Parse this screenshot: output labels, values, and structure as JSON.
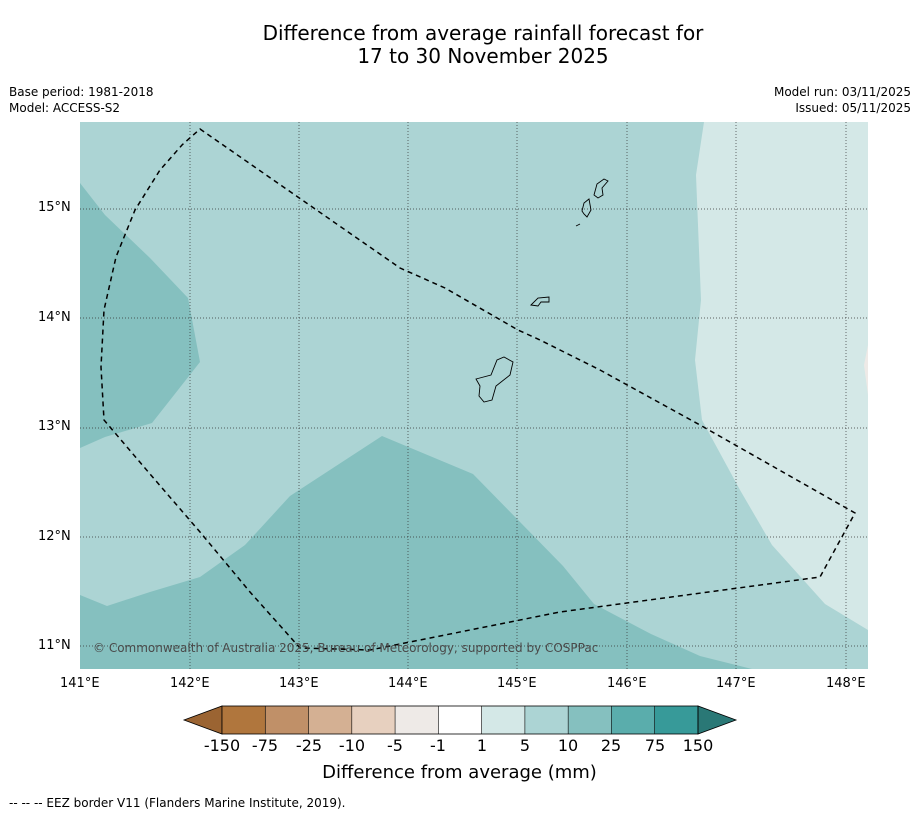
{
  "title": {
    "line1": "Difference from average rainfall forecast for",
    "line2": "17 to 30 November 2025"
  },
  "meta": {
    "base_period": "Base period: 1981-2018",
    "model": "Model: ACCESS-S2",
    "model_run": "Model run: 03/11/2025",
    "issued": "Issued: 05/11/2025"
  },
  "map": {
    "copyright": "© Commonwealth of Australia 2025, Bureau of Meteorology, supported by COSPPac",
    "lon_labels": [
      "141°E",
      "142°E",
      "143°E",
      "144°E",
      "145°E",
      "146°E",
      "147°E",
      "148°E"
    ],
    "lat_labels": [
      "15°N",
      "14°N",
      "13°N",
      "12°N",
      "11°N"
    ],
    "extent": {
      "lon": [
        141.0,
        148.2
      ],
      "lat": [
        10.8,
        15.8
      ]
    },
    "regions": [
      "Guam",
      "Rota",
      "Tinian",
      "Saipan"
    ],
    "eez_border": "dashed"
  },
  "colorbar": {
    "title": "Difference from average (mm)",
    "tick_labels": [
      "-150",
      "-75",
      "-25",
      "-10",
      "-5",
      "-1",
      "1",
      "5",
      "10",
      "25",
      "75",
      "150"
    ],
    "colors": [
      "#9b6432",
      "#b0763d",
      "#c09068",
      "#d4b093",
      "#e7d0bf",
      "#eeeae7",
      "#ffffff",
      "#d4e8e7",
      "#acd4d4",
      "#85c0bf",
      "#5aadac",
      "#379a99",
      "#2a7876"
    ]
  },
  "footnote": "--  --  -- EEZ border V11 (Flanders Marine Institute, 2019).",
  "colors": {
    "field_10_25": "#acd4d4",
    "field_25_75": "#85c0bf",
    "field_5_10": "#d4e8e7",
    "field_1_5": "#eeeae7"
  }
}
